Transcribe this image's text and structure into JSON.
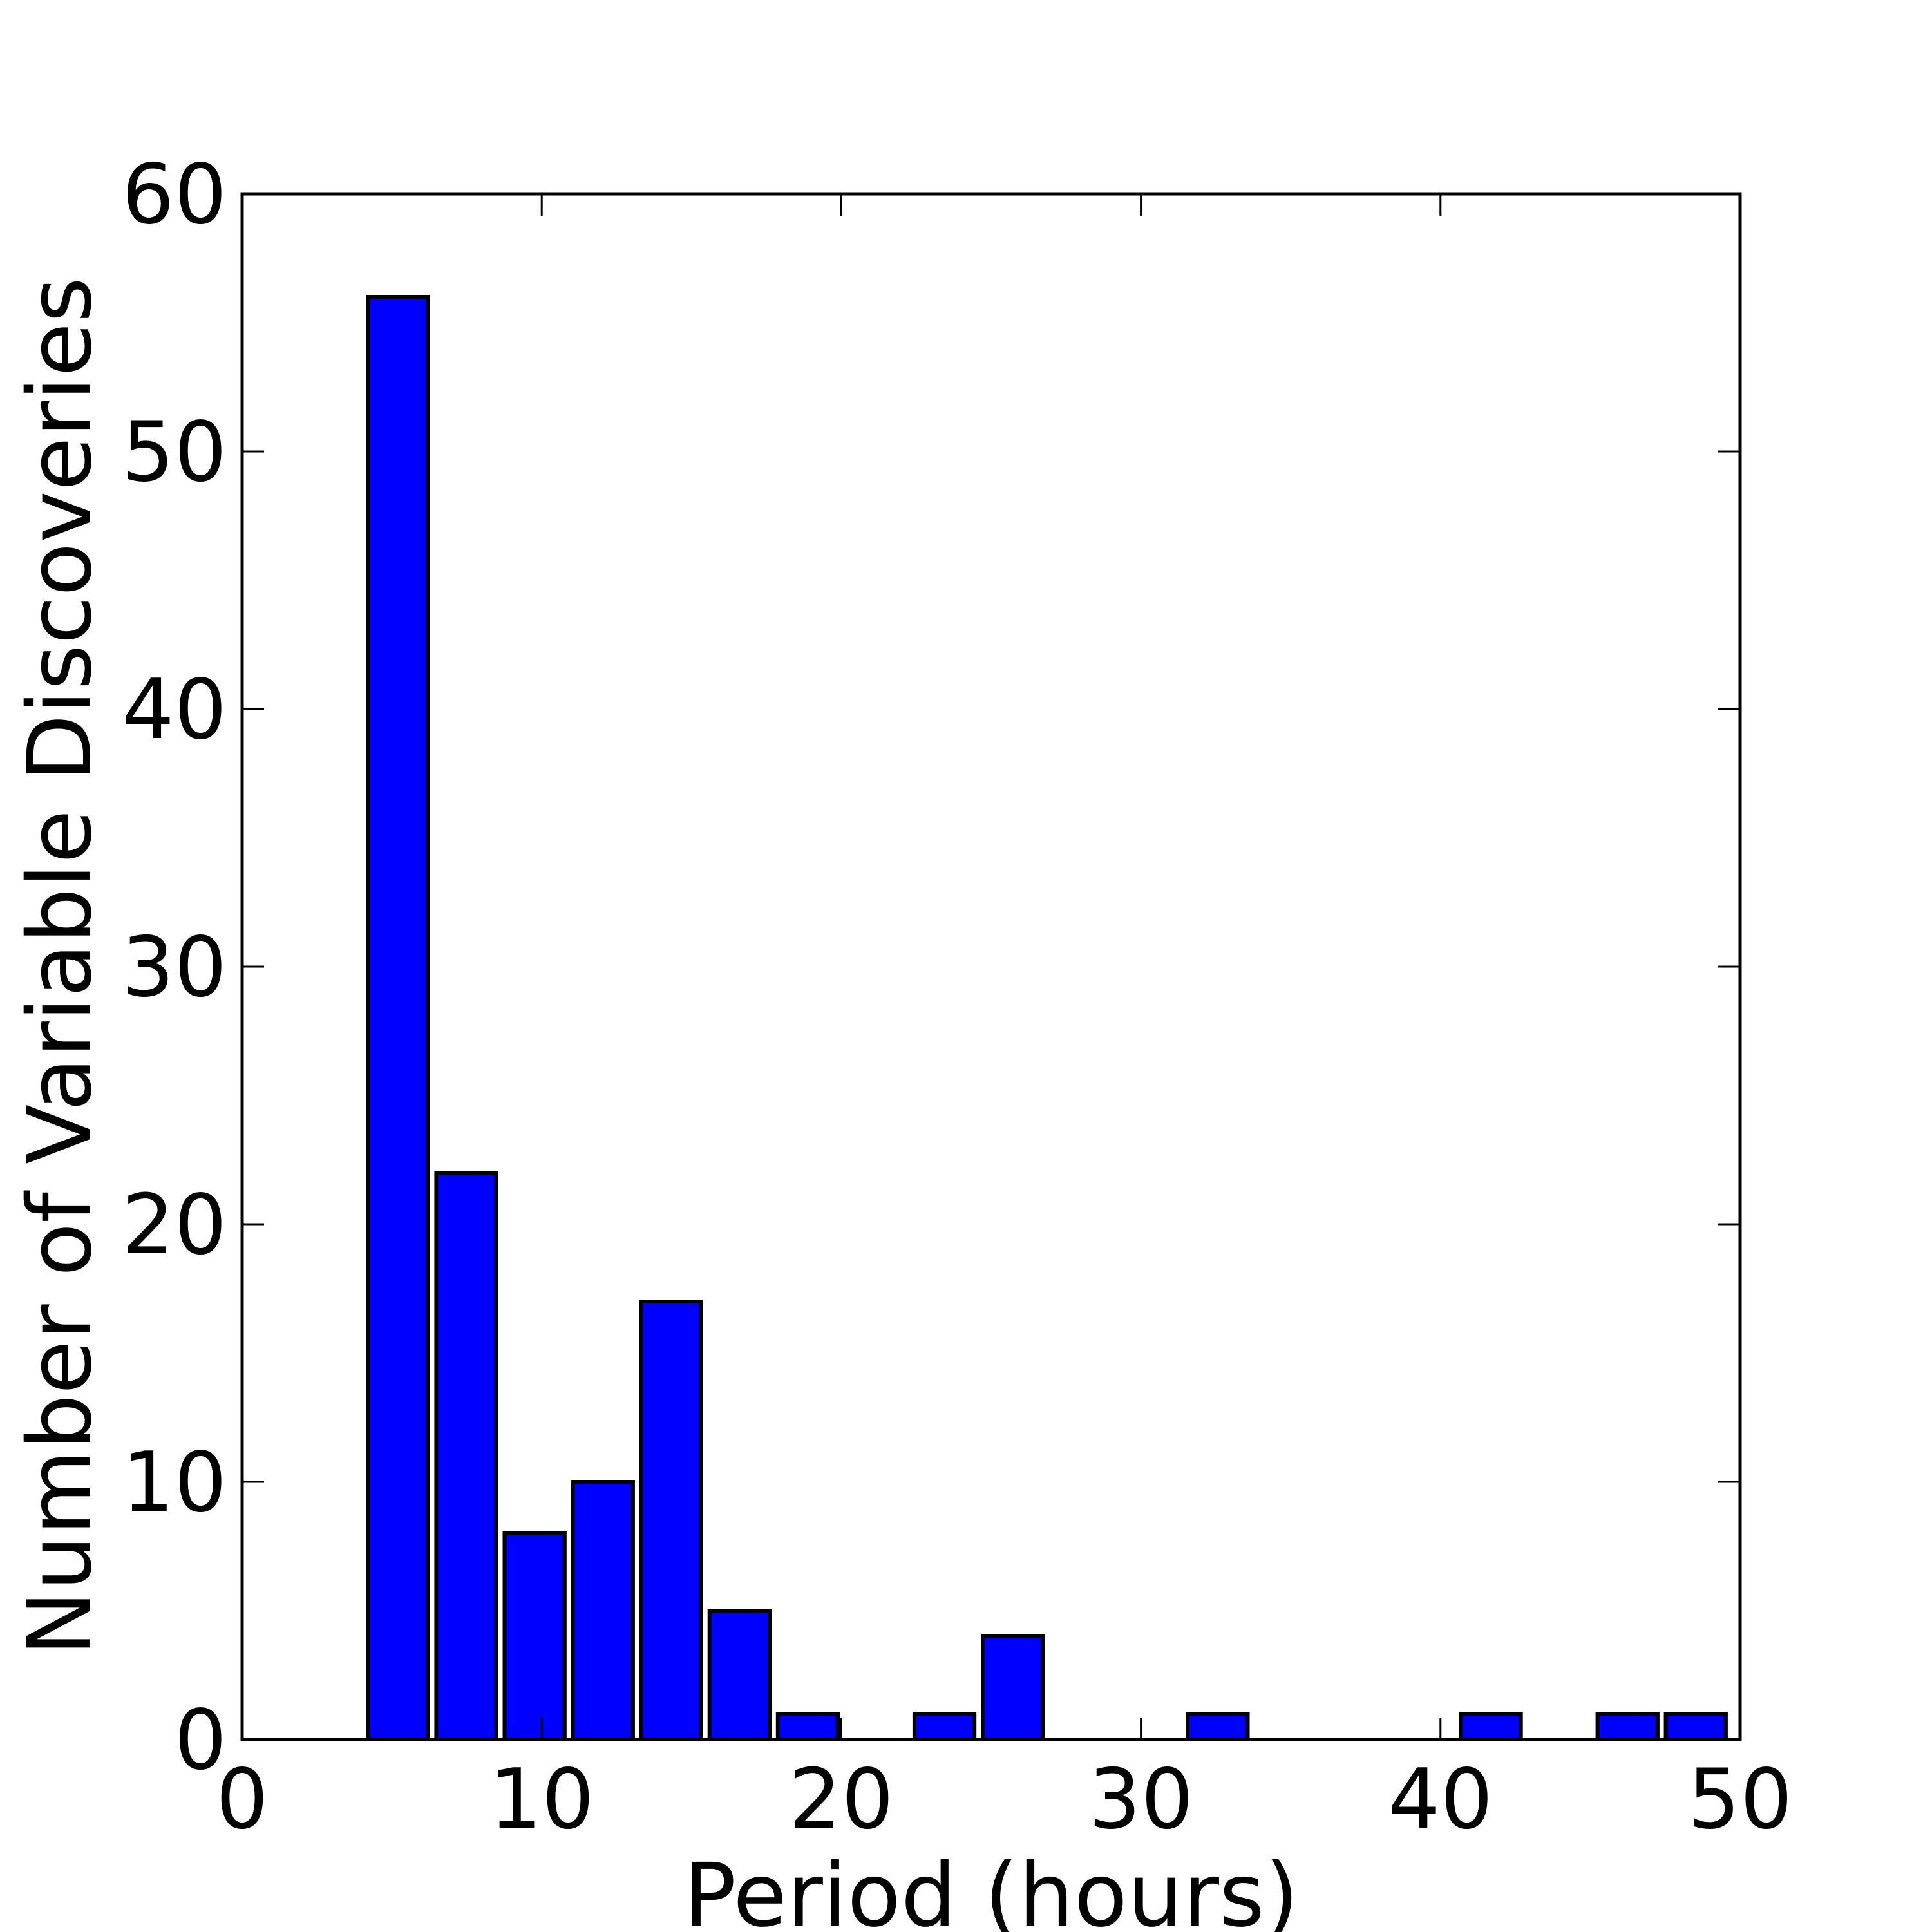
{
  "chart_data": {
    "type": "bar",
    "xlabel": "Period (hours)",
    "ylabel": "Number of Variable Discoveries",
    "xlim": [
      0,
      50
    ],
    "ylim": [
      0,
      60
    ],
    "xticks": [
      0,
      10,
      20,
      30,
      40,
      50
    ],
    "yticks": [
      0,
      10,
      20,
      30,
      40,
      50,
      60
    ],
    "bin_width": 2.28,
    "bars": [
      {
        "x_start": 4.2,
        "value": 56
      },
      {
        "x_start": 6.48,
        "value": 22
      },
      {
        "x_start": 8.76,
        "value": 8
      },
      {
        "x_start": 11.04,
        "value": 10
      },
      {
        "x_start": 13.32,
        "value": 17
      },
      {
        "x_start": 15.6,
        "value": 5
      },
      {
        "x_start": 17.88,
        "value": 1
      },
      {
        "x_start": 20.16,
        "value": 0
      },
      {
        "x_start": 22.44,
        "value": 1
      },
      {
        "x_start": 24.72,
        "value": 4
      },
      {
        "x_start": 27.0,
        "value": 0
      },
      {
        "x_start": 29.28,
        "value": 0
      },
      {
        "x_start": 31.56,
        "value": 1
      },
      {
        "x_start": 33.84,
        "value": 0
      },
      {
        "x_start": 36.12,
        "value": 0
      },
      {
        "x_start": 38.4,
        "value": 0
      },
      {
        "x_start": 40.68,
        "value": 1
      },
      {
        "x_start": 42.96,
        "value": 0
      },
      {
        "x_start": 45.24,
        "value": 1
      },
      {
        "x_start": 47.52,
        "value": 1
      }
    ],
    "bar_color": "#0000ff",
    "edge_color": "#000000",
    "grid": false,
    "legend": "none"
  }
}
